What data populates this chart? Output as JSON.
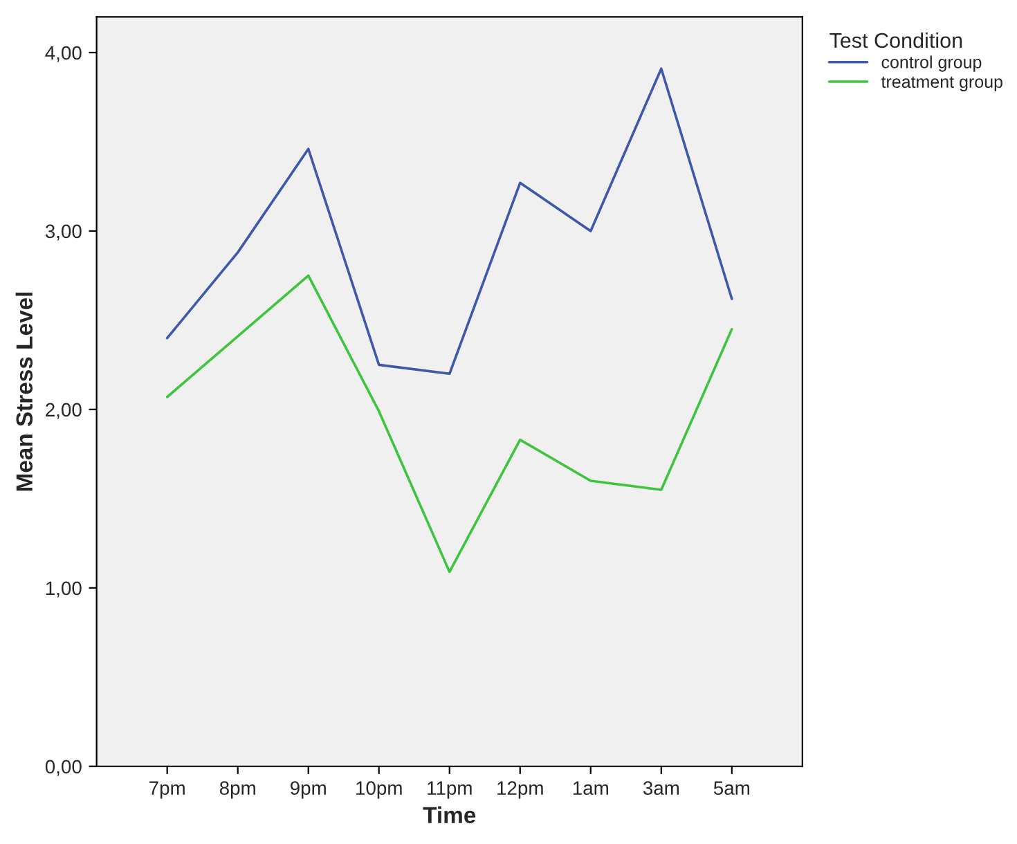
{
  "chart_data": {
    "type": "line",
    "xlabel": "Time",
    "ylabel": "Mean Stress Level",
    "legend_title": "Test Condition",
    "categories": [
      "7pm",
      "8pm",
      "9pm",
      "10pm",
      "11pm",
      "12pm",
      "1am",
      "3am",
      "5am"
    ],
    "series": [
      {
        "name": "control group",
        "color": "#3e58ac",
        "values": [
          2.4,
          2.88,
          3.46,
          2.25,
          2.2,
          3.27,
          3.0,
          3.91,
          2.62
        ]
      },
      {
        "name": "treatment group",
        "color": "#3ec43e",
        "values": [
          2.07,
          2.41,
          2.75,
          1.99,
          1.09,
          1.83,
          1.6,
          1.55,
          2.45
        ]
      }
    ],
    "ylim": [
      0,
      4.2
    ],
    "yticks": [
      {
        "value": 0,
        "label": "0,00"
      },
      {
        "value": 1,
        "label": "1,00"
      },
      {
        "value": 2,
        "label": "2,00"
      },
      {
        "value": 3,
        "label": "3,00"
      },
      {
        "value": 4,
        "label": "4,00"
      }
    ],
    "grid": false,
    "legend": "top right",
    "marker": "none",
    "line_style": "solid"
  }
}
